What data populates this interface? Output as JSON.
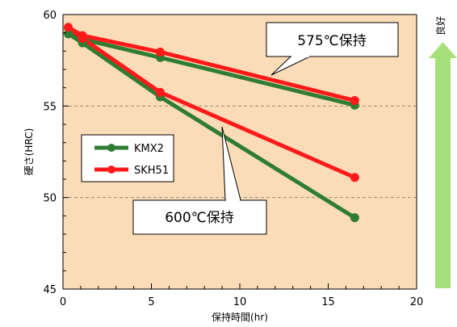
{
  "chart_data": {
    "type": "line",
    "xlabel": "保持時間(hr)",
    "ylabel": "硬さ(HRC)",
    "xlim": [
      0,
      20
    ],
    "ylim": [
      45,
      60
    ],
    "x_ticks": [
      "0",
      "5",
      "10",
      "15",
      "20"
    ],
    "y_ticks": [
      "45",
      "50",
      "55",
      "60"
    ],
    "grid": "dashed horizontal lines at 50 and 55",
    "background_color": "#fbdcb8",
    "series": [
      {
        "name": "KMX2",
        "color": "#2e7d32",
        "group": "575℃保持",
        "x": [
          0.3,
          1.1,
          5.5,
          16.5
        ],
        "y": [
          58.95,
          58.65,
          57.65,
          55.05
        ]
      },
      {
        "name": "SKH51",
        "color": "#ff1a1a",
        "group": "575℃保持",
        "x": [
          0.3,
          1.1,
          5.5,
          16.5
        ],
        "y": [
          59.3,
          58.85,
          57.95,
          55.3
        ]
      },
      {
        "name": "KMX2",
        "color": "#2e7d32",
        "group": "600℃保持",
        "x": [
          0.3,
          1.1,
          5.5,
          16.5
        ],
        "y": [
          58.95,
          58.45,
          55.5,
          48.9
        ]
      },
      {
        "name": "SKH51",
        "color": "#ff1a1a",
        "group": "600℃保持",
        "x": [
          0.3,
          1.1,
          5.5,
          16.5
        ],
        "y": [
          59.3,
          58.7,
          55.75,
          51.1
        ]
      }
    ],
    "legend": [
      {
        "name": "KMX2",
        "color": "#2e7d32"
      },
      {
        "name": "SKH51",
        "color": "#ff1a1a"
      }
    ],
    "legend_placement": "left-middle",
    "annotations": [
      {
        "text": "575℃保持",
        "target_group": "575℃保持"
      },
      {
        "text": "600℃保持",
        "target_group": "600℃保持"
      }
    ],
    "side_indicator": {
      "label": "良好",
      "direction": "up",
      "color": "#a6e07a"
    }
  }
}
